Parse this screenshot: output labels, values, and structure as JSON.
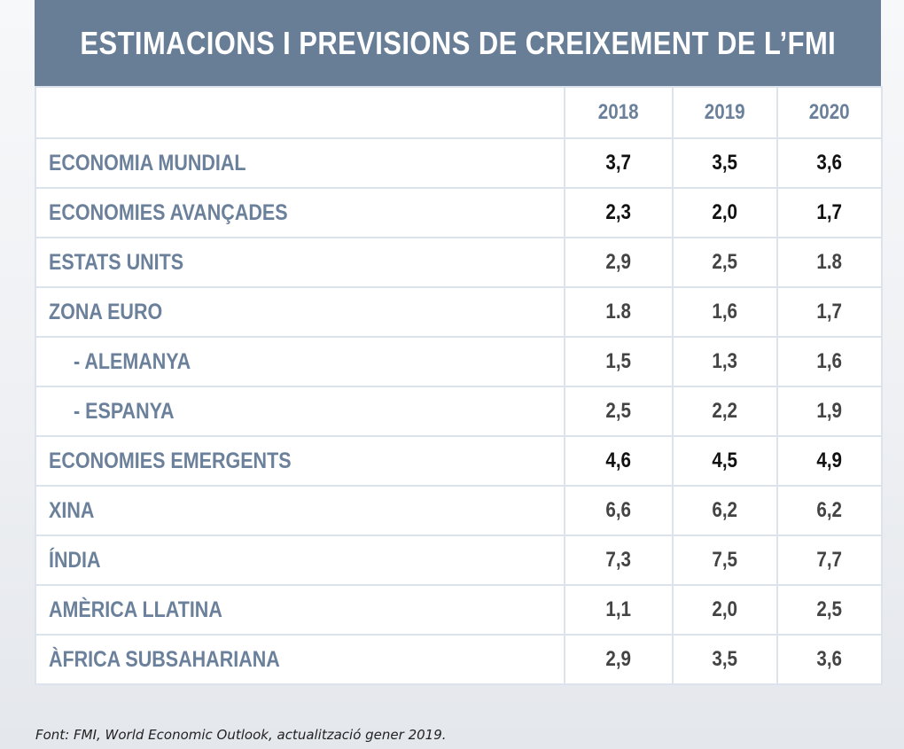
{
  "header": {
    "title": "ESTIMACIONS I PREVISIONS DE CREIXEMENT DE L’FMI"
  },
  "chart_data": {
    "type": "table",
    "title": "ESTIMACIONS I PREVISIONS DE CREIXEMENT DE L’FMI",
    "columns": [
      "2018",
      "2019",
      "2020"
    ],
    "rows": [
      {
        "label": "ECONOMIA MUNDIAL",
        "values": [
          "3,7",
          "3,5",
          "3,6"
        ],
        "indent": false,
        "strong": true
      },
      {
        "label": "ECONOMIES AVANÇADES",
        "values": [
          "2,3",
          "2,0",
          "1,7"
        ],
        "indent": false,
        "strong": true
      },
      {
        "label": "ESTATS UNITS",
        "values": [
          "2,9",
          "2,5",
          "1.8"
        ],
        "indent": false,
        "strong": false
      },
      {
        "label": "ZONA EURO",
        "values": [
          "1.8",
          "1,6",
          "1,7"
        ],
        "indent": false,
        "strong": false
      },
      {
        "label": "- ALEMANYA",
        "values": [
          "1,5",
          "1,3",
          "1,6"
        ],
        "indent": true,
        "strong": false
      },
      {
        "label": "- ESPANYA",
        "values": [
          "2,5",
          "2,2",
          "1,9"
        ],
        "indent": true,
        "strong": false
      },
      {
        "label": "ECONOMIES EMERGENTS",
        "values": [
          "4,6",
          "4,5",
          "4,9"
        ],
        "indent": false,
        "strong": true
      },
      {
        "label": "XINA",
        "values": [
          "6,6",
          "6,2",
          "6,2"
        ],
        "indent": false,
        "strong": false
      },
      {
        "label": "ÍNDIA",
        "values": [
          "7,3",
          "7,5",
          "7,7"
        ],
        "indent": false,
        "strong": false
      },
      {
        "label": "AMÈRICA LLATINA",
        "values": [
          "1,1",
          "2,0",
          "2,5"
        ],
        "indent": false,
        "strong": false
      },
      {
        "label": "ÀFRICA SUBSAHARIANA",
        "values": [
          "2,9",
          "3,5",
          "3,6"
        ],
        "indent": false,
        "strong": false
      }
    ]
  },
  "source": "Font: FMI, World Economic Outlook, actualització gener 2019.",
  "colors": {
    "header_bg": "#687d96",
    "label_text": "#6b809a",
    "border": "#dde3ec"
  }
}
